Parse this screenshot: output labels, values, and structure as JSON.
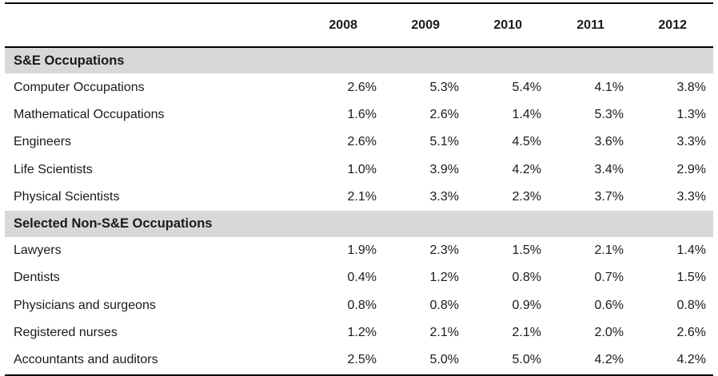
{
  "colors": {
    "section_band": "#d8d8d8",
    "rule": "#000000",
    "text": "#1a1a1a",
    "background": "#ffffff"
  },
  "chart_data": {
    "type": "table",
    "columns": [
      "2008",
      "2009",
      "2010",
      "2011",
      "2012"
    ],
    "unit": "percent",
    "sections": [
      {
        "title": "S&E Occupations",
        "rows": [
          {
            "label": "Computer Occupations",
            "values": [
              "2.6%",
              "5.3%",
              "5.4%",
              "4.1%",
              "3.8%"
            ]
          },
          {
            "label": "Mathematical Occupations",
            "values": [
              "1.6%",
              "2.6%",
              "1.4%",
              "5.3%",
              "1.3%"
            ]
          },
          {
            "label": "Engineers",
            "values": [
              "2.6%",
              "5.1%",
              "4.5%",
              "3.6%",
              "3.3%"
            ]
          },
          {
            "label": "Life Scientists",
            "values": [
              "1.0%",
              "3.9%",
              "4.2%",
              "3.4%",
              "2.9%"
            ]
          },
          {
            "label": "Physical Scientists",
            "values": [
              "2.1%",
              "3.3%",
              "2.3%",
              "3.7%",
              "3.3%"
            ]
          }
        ]
      },
      {
        "title": "Selected Non-S&E Occupations",
        "rows": [
          {
            "label": "Lawyers",
            "values": [
              "1.9%",
              "2.3%",
              "1.5%",
              "2.1%",
              "1.4%"
            ]
          },
          {
            "label": "Dentists",
            "values": [
              "0.4%",
              "1.2%",
              "0.8%",
              "0.7%",
              "1.5%"
            ]
          },
          {
            "label": "Physicians and surgeons",
            "values": [
              "0.8%",
              "0.8%",
              "0.9%",
              "0.6%",
              "0.8%"
            ]
          },
          {
            "label": "Registered nurses",
            "values": [
              "1.2%",
              "2.1%",
              "2.1%",
              "2.0%",
              "2.6%"
            ]
          },
          {
            "label": "Accountants and auditors",
            "values": [
              "2.5%",
              "5.0%",
              "5.0%",
              "4.2%",
              "4.2%"
            ]
          }
        ]
      }
    ]
  }
}
